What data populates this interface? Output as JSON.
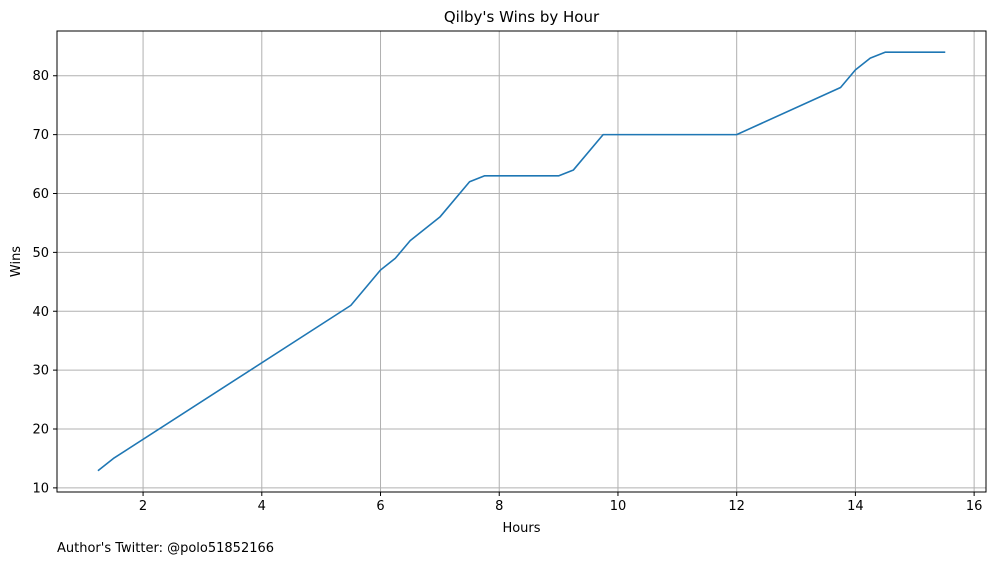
{
  "chart_data": {
    "type": "line",
    "title": "Qilby's Wins by Hour",
    "xlabel": "Hours",
    "ylabel": "Wins",
    "xlim": [
      0.55,
      16.2
    ],
    "ylim": [
      9.3,
      87.6
    ],
    "xticks": [
      2,
      4,
      6,
      8,
      10,
      12,
      14,
      16
    ],
    "yticks": [
      10,
      20,
      30,
      40,
      50,
      60,
      70,
      80
    ],
    "grid": true,
    "line_color": "#1f77b4",
    "series": [
      {
        "x": [
          1.25,
          1.5,
          5.5,
          6.0,
          6.25,
          6.5,
          7.0,
          7.5,
          7.75,
          9.0,
          9.25,
          9.75,
          12.0,
          13.75,
          14.0,
          14.25,
          14.5,
          15.5
        ],
        "y": [
          13,
          15,
          41,
          47,
          49,
          52,
          56,
          62,
          63,
          63,
          64,
          70,
          70,
          78,
          81,
          83,
          84,
          84
        ]
      }
    ]
  },
  "footer": {
    "text": "Author's Twitter: @polo51852166"
  }
}
